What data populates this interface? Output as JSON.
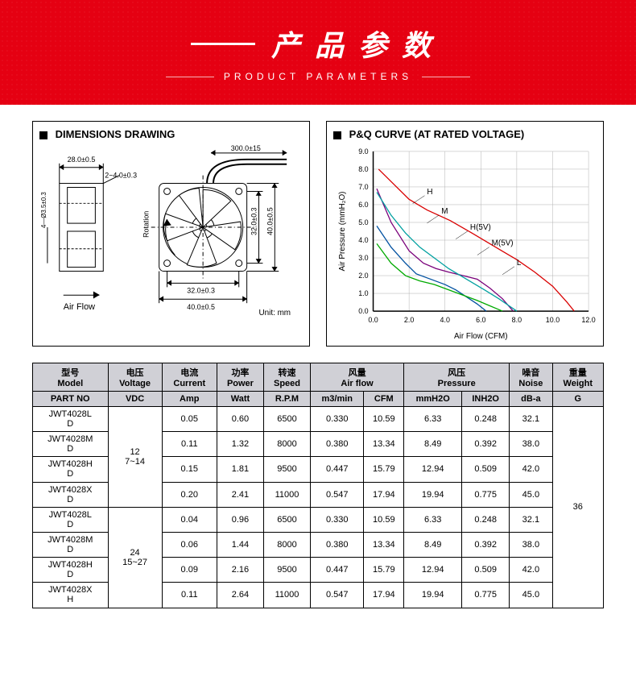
{
  "banner": {
    "title_cn": "产品参数",
    "title_en": "PRODUCT PARAMETERS",
    "bg_color": "#e50012",
    "text_color": "#ffffff"
  },
  "dimensions_fig": {
    "title": "DIMENSIONS DRAWING",
    "labels": {
      "width_top": "28.0±0.5",
      "chamfer": "2~4.0±0.3",
      "hole_note": "4—Ø3.5±0.3",
      "airflow": "Air Flow",
      "wire_len": "300.0±15",
      "rotation": "Rotation",
      "inner_w": "32.0±0.3",
      "outer_w": "40.0±0.5",
      "inner_h": "32.0±0.3",
      "outer_h": "40.0±0.5",
      "unit": "Unit: mm"
    },
    "stroke": "#000000",
    "fontsize": 8
  },
  "pq_chart": {
    "title": "P&Q CURVE (AT RATED VOLTAGE)",
    "type": "line",
    "xlabel": "Air Flow (CFM)",
    "ylabel": "Air Pressure (mmH₂O)",
    "xlim": [
      0,
      12
    ],
    "xtick_step": 2,
    "ylim": [
      0,
      9
    ],
    "ytick_step": 1,
    "grid_color": "#b0b0b0",
    "axis_color": "#000000",
    "label_fontsize": 10,
    "tick_fontsize": 9,
    "series": [
      {
        "name": "H",
        "color": "#d90000",
        "points": [
          [
            0.3,
            8.0
          ],
          [
            2.0,
            6.3
          ],
          [
            3.0,
            5.7
          ],
          [
            4.3,
            5.1
          ],
          [
            5.5,
            4.4
          ],
          [
            7.0,
            3.5
          ],
          [
            8.0,
            2.9
          ],
          [
            9.0,
            2.2
          ],
          [
            10.0,
            1.4
          ],
          [
            10.8,
            0.5
          ],
          [
            11.2,
            0.0
          ]
        ]
      },
      {
        "name": "M",
        "color": "#7a007a",
        "points": [
          [
            0.2,
            6.9
          ],
          [
            1.0,
            5.0
          ],
          [
            2.0,
            3.4
          ],
          [
            2.8,
            2.7
          ],
          [
            3.5,
            2.4
          ],
          [
            4.2,
            2.2
          ],
          [
            5.0,
            2.0
          ],
          [
            5.8,
            1.8
          ],
          [
            6.5,
            1.3
          ],
          [
            7.2,
            0.7
          ],
          [
            7.8,
            0.0
          ]
        ]
      },
      {
        "name": "H(5V)",
        "color": "#00a0a0",
        "points": [
          [
            0.2,
            6.7
          ],
          [
            1.0,
            5.4
          ],
          [
            1.8,
            4.4
          ],
          [
            2.6,
            3.6
          ],
          [
            3.4,
            3.0
          ],
          [
            4.2,
            2.4
          ],
          [
            5.2,
            1.8
          ],
          [
            6.2,
            1.2
          ],
          [
            7.0,
            0.7
          ],
          [
            8.0,
            0.0
          ]
        ]
      },
      {
        "name": "M(5V)",
        "color": "#0050a0",
        "points": [
          [
            0.2,
            4.8
          ],
          [
            1.0,
            3.6
          ],
          [
            1.8,
            2.7
          ],
          [
            2.4,
            2.1
          ],
          [
            3.2,
            1.8
          ],
          [
            4.0,
            1.5
          ],
          [
            4.6,
            1.2
          ],
          [
            5.2,
            0.8
          ],
          [
            5.8,
            0.4
          ],
          [
            6.3,
            0.0
          ]
        ]
      },
      {
        "name": "L",
        "color": "#00aa00",
        "points": [
          [
            0.2,
            3.8
          ],
          [
            1.0,
            2.7
          ],
          [
            1.8,
            2.0
          ],
          [
            2.6,
            1.7
          ],
          [
            3.4,
            1.5
          ],
          [
            4.2,
            1.2
          ],
          [
            5.0,
            0.9
          ],
          [
            5.8,
            0.6
          ],
          [
            6.5,
            0.3
          ],
          [
            7.2,
            0.0
          ]
        ]
      }
    ],
    "series_labels": [
      {
        "text": "H",
        "x": 3.0,
        "y": 6.6,
        "color": "#d90000"
      },
      {
        "text": "M",
        "x": 3.8,
        "y": 5.5,
        "color": "#7a007a"
      },
      {
        "text": "H(5V)",
        "x": 5.4,
        "y": 4.6,
        "color": "#00a0a0"
      },
      {
        "text": "M(5V)",
        "x": 6.6,
        "y": 3.7,
        "color": "#0050a0"
      },
      {
        "text": "L",
        "x": 8.0,
        "y": 2.6,
        "color": "#00aa00"
      }
    ]
  },
  "table": {
    "headers_cn": [
      "型号",
      "电压",
      "电流",
      "功率",
      "转速",
      "风量",
      "风压",
      "噪音",
      "重量"
    ],
    "headers_en": [
      "Model",
      "Voltage",
      "Current",
      "Power",
      "Speed",
      "Air flow",
      "Pressure",
      "Noise",
      "Weight"
    ],
    "units": [
      "PART NO",
      "VDC",
      "Amp",
      "Watt",
      "R.P.M",
      "m3/min",
      "CFM",
      "mmH2O",
      "INH2O",
      "dB-a",
      "G"
    ],
    "voltage_groups": [
      {
        "vdc": "12",
        "range": "7~14",
        "rowspan": 4
      },
      {
        "vdc": "24",
        "range": "15~27",
        "rowspan": 4
      }
    ],
    "weight": "36",
    "rows": [
      {
        "part1": "JWT4028L",
        "part2": "D",
        "amp": "0.05",
        "watt": "0.60",
        "rpm": "6500",
        "m3min": "0.330",
        "cfm": "10.59",
        "mmh2o": "6.33",
        "inh2o": "0.248",
        "dba": "32.1"
      },
      {
        "part1": "JWT4028M",
        "part2": "D",
        "amp": "0.11",
        "watt": "1.32",
        "rpm": "8000",
        "m3min": "0.380",
        "cfm": "13.34",
        "mmh2o": "8.49",
        "inh2o": "0.392",
        "dba": "38.0"
      },
      {
        "part1": "JWT4028H",
        "part2": "D",
        "amp": "0.15",
        "watt": "1.81",
        "rpm": "9500",
        "m3min": "0.447",
        "cfm": "15.79",
        "mmh2o": "12.94",
        "inh2o": "0.509",
        "dba": "42.0"
      },
      {
        "part1": "JWT4028X",
        "part2": "D",
        "amp": "0.20",
        "watt": "2.41",
        "rpm": "11000",
        "m3min": "0.547",
        "cfm": "17.94",
        "mmh2o": "19.94",
        "inh2o": "0.775",
        "dba": "45.0"
      },
      {
        "part1": "JWT4028L",
        "part2": "D",
        "amp": "0.04",
        "watt": "0.96",
        "rpm": "6500",
        "m3min": "0.330",
        "cfm": "10.59",
        "mmh2o": "6.33",
        "inh2o": "0.248",
        "dba": "32.1"
      },
      {
        "part1": "JWT4028M",
        "part2": "D",
        "amp": "0.06",
        "watt": "1.44",
        "rpm": "8000",
        "m3min": "0.380",
        "cfm": "13.34",
        "mmh2o": "8.49",
        "inh2o": "0.392",
        "dba": "38.0"
      },
      {
        "part1": "JWT4028H",
        "part2": "D",
        "amp": "0.09",
        "watt": "2.16",
        "rpm": "9500",
        "m3min": "0.447",
        "cfm": "15.79",
        "mmh2o": "12.94",
        "inh2o": "0.509",
        "dba": "42.0"
      },
      {
        "part1": "JWT4028X",
        "part2": "H",
        "amp": "0.11",
        "watt": "2.64",
        "rpm": "11000",
        "m3min": "0.547",
        "cfm": "17.94",
        "mmh2o": "19.94",
        "inh2o": "0.775",
        "dba": "45.0"
      }
    ]
  }
}
